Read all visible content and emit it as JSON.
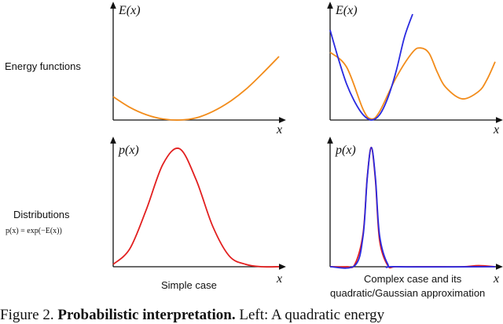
{
  "figure": {
    "row_labels": {
      "energy": "Energy functions",
      "distributions": "Distributions",
      "formula": "p(x) = exp(−E(x))"
    },
    "panel_captions": {
      "simple": "Simple case",
      "complex_line1": "Complex case and its",
      "complex_line2": "quadratic/Gaussian approximation"
    },
    "axis_labels": {
      "energy_y": "E(x)",
      "prob_y": "p(x)",
      "x": "x"
    },
    "caption": {
      "prefix": "Figure 2. ",
      "bold": "Probabilistic interpretation.",
      "rest": " Left: A quadratic energy"
    }
  },
  "chart_data": [
    {
      "type": "line",
      "panel": "top-left",
      "ylabel": "E(x)",
      "xlabel": "x",
      "xlim": [
        0,
        1
      ],
      "ylim": [
        0,
        1
      ],
      "series": [
        {
          "name": "energy",
          "color": "#f28c1b",
          "x": [
            0,
            0.1,
            0.2,
            0.3,
            0.4,
            0.5,
            0.6,
            0.7,
            0.8,
            0.9,
            1.0
          ],
          "values": [
            0.22,
            0.12,
            0.05,
            0.01,
            0.0,
            0.02,
            0.08,
            0.17,
            0.29,
            0.44,
            0.6
          ]
        }
      ]
    },
    {
      "type": "line",
      "panel": "top-right",
      "ylabel": "E(x)",
      "xlabel": "x",
      "xlim": [
        0,
        1
      ],
      "ylim": [
        0,
        1
      ],
      "series": [
        {
          "name": "energy",
          "color": "#f28c1b",
          "x": [
            0,
            0.1,
            0.2,
            0.25,
            0.3,
            0.4,
            0.5,
            0.55,
            0.6,
            0.65,
            0.7,
            0.8,
            0.9,
            0.95,
            1.0
          ],
          "values": [
            0.64,
            0.5,
            0.1,
            0.01,
            0.08,
            0.4,
            0.64,
            0.68,
            0.63,
            0.45,
            0.31,
            0.2,
            0.27,
            0.38,
            0.55
          ]
        },
        {
          "name": "quadratic approximation",
          "color": "#2a2ae0",
          "x": [
            0,
            0.05,
            0.1,
            0.15,
            0.2,
            0.25,
            0.3,
            0.35,
            0.4,
            0.45,
            0.5
          ],
          "values": [
            0.85,
            0.58,
            0.34,
            0.17,
            0.05,
            0.0,
            0.05,
            0.21,
            0.46,
            0.78,
            1.0
          ]
        }
      ]
    },
    {
      "type": "line",
      "panel": "bottom-left",
      "ylabel": "p(x)",
      "xlabel": "x",
      "xlim": [
        0,
        1
      ],
      "ylim": [
        0,
        1
      ],
      "series": [
        {
          "name": "distribution",
          "color": "#e21f1f",
          "x": [
            0,
            0.1,
            0.2,
            0.3,
            0.4,
            0.5,
            0.6,
            0.7,
            0.8,
            0.9,
            1.0
          ],
          "values": [
            0.02,
            0.15,
            0.48,
            0.86,
            0.99,
            0.73,
            0.34,
            0.09,
            0.02,
            0.0,
            0.0
          ]
        }
      ]
    },
    {
      "type": "line",
      "panel": "bottom-right",
      "ylabel": "p(x)",
      "xlabel": "x",
      "xlim": [
        0,
        1
      ],
      "ylim": [
        0,
        1
      ],
      "series": [
        {
          "name": "distribution",
          "color": "#e21f1f",
          "x": [
            0,
            0.1,
            0.15,
            0.2,
            0.225,
            0.25,
            0.275,
            0.3,
            0.35,
            0.4,
            0.6,
            0.8,
            0.9,
            1.0
          ],
          "values": [
            0.0,
            0.0,
            0.02,
            0.28,
            0.75,
            1.0,
            0.72,
            0.22,
            0.01,
            0.0,
            0.0,
            0.0,
            0.01,
            0.0
          ]
        },
        {
          "name": "Gaussian approximation",
          "color": "#2a2ae0",
          "x": [
            0,
            0.15,
            0.2,
            0.225,
            0.25,
            0.275,
            0.3,
            0.35,
            0.4,
            1.0
          ],
          "values": [
            0.0,
            0.01,
            0.26,
            0.74,
            1.0,
            0.74,
            0.26,
            0.02,
            0.0,
            0.0
          ]
        }
      ]
    }
  ]
}
